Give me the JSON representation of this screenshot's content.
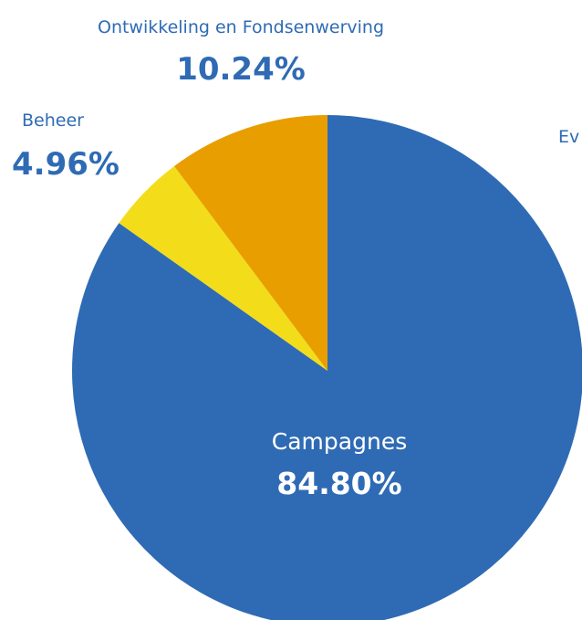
{
  "chart_data": {
    "type": "pie",
    "start_angle_deg": 0,
    "direction": "clockwise",
    "slices": [
      {
        "label": "Campagnes",
        "value": 84.8,
        "display": "84.80%",
        "color": "#2f6bb4",
        "label_position": "inside",
        "text_color": "#ffffff"
      },
      {
        "label": "Beheer",
        "value": 4.96,
        "display": "4.96%",
        "color": "#f3dc1a",
        "label_position": "outside-left",
        "text_color": "#2f6bb4"
      },
      {
        "label": "Ontwikkeling en Fondsenwerving",
        "value": 10.24,
        "display": "10.24%",
        "color": "#e99e00",
        "label_position": "outside-top",
        "text_color": "#2f6bb4"
      }
    ],
    "partial_labels": [
      {
        "text": "Ev",
        "color": "#2f6bb4"
      }
    ]
  }
}
